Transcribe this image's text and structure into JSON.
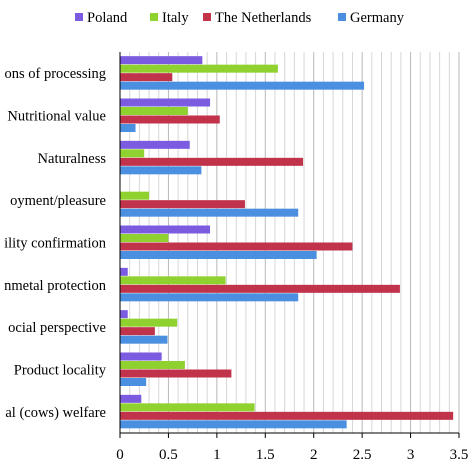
{
  "chart_data": {
    "type": "bar",
    "orientation": "horizontal",
    "grid": true,
    "legend_position": "top",
    "xlim": [
      0,
      3.5
    ],
    "x_ticks": [
      "0",
      "0.5",
      "1",
      "1.5",
      "2",
      "2.5",
      "3",
      "3.5"
    ],
    "categories": [
      "ons of processing",
      "Nutritional value",
      "Naturalness",
      "oyment/pleasure",
      "ility confirmation",
      "nmetal protection",
      "ocial perspective",
      "Product locality",
      "al (cows) welfare"
    ],
    "series": [
      {
        "name": "Poland",
        "color": "#7b5be0",
        "values": [
          0.85,
          0.93,
          0.72,
          0.0,
          0.93,
          0.08,
          0.08,
          0.43,
          0.22
        ]
      },
      {
        "name": "Italy",
        "color": "#8fd12f",
        "values": [
          1.63,
          0.7,
          0.25,
          0.3,
          0.5,
          1.09,
          0.59,
          0.67,
          1.39
        ]
      },
      {
        "name": "The Netherlands",
        "color": "#c0334a",
        "values": [
          0.54,
          1.03,
          1.89,
          1.29,
          2.4,
          2.89,
          0.36,
          1.15,
          3.44
        ]
      },
      {
        "name": "Germany",
        "color": "#4a8fe0",
        "values": [
          2.52,
          0.16,
          0.84,
          1.84,
          2.03,
          1.84,
          0.49,
          0.27,
          2.34
        ]
      }
    ]
  }
}
